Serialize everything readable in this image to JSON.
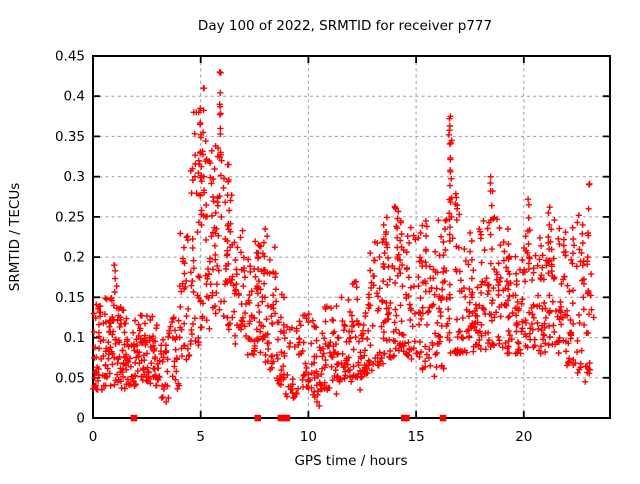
{
  "chart_data": {
    "type": "scatter",
    "title": "Day 100 of 2022, SRMTID for receiver p777",
    "xlabel": "GPS time / hours",
    "ylabel": "SRMTID / TECUs",
    "xlim": [
      0,
      24
    ],
    "ylim": [
      0,
      0.45
    ],
    "grid": true,
    "legend": "none",
    "marker": "plus",
    "marker_color": "#ff0000",
    "grid_color": "#9c9c9c",
    "axis_color": "#000000",
    "background_color": "#ffffff",
    "x_ticks": [
      {
        "v": 0,
        "label": "0"
      },
      {
        "v": 5,
        "label": "5"
      },
      {
        "v": 10,
        "label": "10"
      },
      {
        "v": 15,
        "label": "15"
      },
      {
        "v": 20,
        "label": "20"
      }
    ],
    "y_ticks": [
      {
        "v": 0,
        "label": "0"
      },
      {
        "v": 0.05,
        "label": "0.05"
      },
      {
        "v": 0.1,
        "label": "0.1"
      },
      {
        "v": 0.15,
        "label": "0.15"
      },
      {
        "v": 0.2,
        "label": "0.2"
      },
      {
        "v": 0.25,
        "label": "0.25"
      },
      {
        "v": 0.3,
        "label": "0.3"
      },
      {
        "v": 0.35,
        "label": "0.35"
      },
      {
        "v": 0.4,
        "label": "0.4"
      },
      {
        "v": 0.45,
        "label": "0.45"
      }
    ],
    "outlier_points": [
      [
        5.93,
        0.429
      ],
      [
        5.13,
        0.41
      ],
      [
        5.9,
        0.387
      ],
      [
        5.89,
        0.377
      ],
      [
        4.68,
        0.38
      ],
      [
        4.91,
        0.38
      ],
      [
        4.97,
        0.365
      ],
      [
        5.02,
        0.352
      ],
      [
        16.55,
        0.372
      ],
      [
        16.57,
        0.363
      ],
      [
        16.52,
        0.352
      ],
      [
        16.6,
        0.342
      ],
      [
        16.58,
        0.308
      ],
      [
        18.45,
        0.292
      ],
      [
        18.55,
        0.282
      ],
      [
        23.05,
        0.291
      ],
      [
        1.0,
        0.19
      ],
      [
        1.03,
        0.183
      ],
      [
        1.1,
        0.164
      ],
      [
        20.2,
        0.272
      ],
      [
        21.2,
        0.262
      ],
      [
        22.55,
        0.252
      ],
      [
        15.5,
        0.238
      ],
      [
        6.3,
        0.315
      ],
      [
        3.4,
        0.02
      ],
      [
        3.5,
        0.025
      ],
      [
        9.3,
        0.025
      ],
      [
        9.45,
        0.03
      ],
      [
        10.4,
        0.02
      ],
      [
        10.5,
        0.015
      ],
      [
        11.3,
        0.03
      ],
      [
        12.4,
        0.035
      ],
      [
        8.95,
        0.03
      ],
      [
        22.85,
        0.045
      ]
    ],
    "arc_streaks": [
      [
        5.02,
        0.24,
        0.385,
        9
      ],
      [
        5.13,
        0.3,
        0.41,
        5
      ],
      [
        5.92,
        0.25,
        0.43,
        8
      ],
      [
        5.88,
        0.33,
        0.39,
        3
      ],
      [
        6.28,
        0.22,
        0.315,
        6
      ],
      [
        16.55,
        0.22,
        0.375,
        10
      ],
      [
        16.62,
        0.25,
        0.345,
        5
      ],
      [
        16.3,
        0.17,
        0.235,
        5
      ],
      [
        14.1,
        0.2,
        0.26,
        6
      ],
      [
        14.3,
        0.18,
        0.245,
        5
      ],
      [
        18.5,
        0.21,
        0.3,
        6
      ],
      [
        20.2,
        0.2,
        0.265,
        5
      ],
      [
        21.15,
        0.18,
        0.255,
        6
      ],
      [
        13.5,
        0.17,
        0.24,
        5
      ],
      [
        7.7,
        0.14,
        0.215,
        6
      ],
      [
        7.95,
        0.15,
        0.235,
        6
      ],
      [
        8.5,
        0.13,
        0.175,
        4
      ],
      [
        4.75,
        0.3,
        0.38,
        4
      ],
      [
        23.0,
        0.2,
        0.29,
        4
      ],
      [
        1.0,
        0.14,
        0.19,
        4
      ],
      [
        15.45,
        0.17,
        0.245,
        5
      ],
      [
        17.6,
        0.15,
        0.22,
        4
      ],
      [
        22.75,
        0.15,
        0.24,
        5
      ],
      [
        12.9,
        0.14,
        0.205,
        4
      ],
      [
        19.3,
        0.16,
        0.235,
        5
      ]
    ],
    "density_bands": [
      [
        0.0,
        0.5,
        40,
        0.035,
        0.145,
        1.6
      ],
      [
        0.5,
        1.0,
        42,
        0.04,
        0.15,
        1.6
      ],
      [
        1.0,
        1.5,
        40,
        0.03,
        0.14,
        1.5
      ],
      [
        1.5,
        2.0,
        38,
        0.04,
        0.125,
        1.5
      ],
      [
        2.0,
        2.5,
        38,
        0.045,
        0.135,
        1.5
      ],
      [
        2.5,
        3.0,
        36,
        0.04,
        0.13,
        1.5
      ],
      [
        3.0,
        3.5,
        26,
        0.025,
        0.105,
        1.4
      ],
      [
        3.5,
        4.0,
        22,
        0.03,
        0.13,
        1.2
      ],
      [
        4.0,
        4.5,
        30,
        0.07,
        0.235,
        1.2
      ],
      [
        4.5,
        5.0,
        36,
        0.09,
        0.33,
        1.3
      ],
      [
        5.0,
        5.5,
        38,
        0.11,
        0.36,
        1.4
      ],
      [
        5.5,
        6.0,
        36,
        0.13,
        0.34,
        1.3
      ],
      [
        6.0,
        6.5,
        34,
        0.11,
        0.3,
        1.4
      ],
      [
        6.5,
        7.0,
        30,
        0.09,
        0.25,
        1.4
      ],
      [
        7.0,
        7.5,
        30,
        0.075,
        0.2,
        1.4
      ],
      [
        7.5,
        8.0,
        34,
        0.08,
        0.23,
        1.3
      ],
      [
        8.0,
        8.5,
        30,
        0.06,
        0.23,
        1.5
      ],
      [
        8.5,
        9.0,
        28,
        0.04,
        0.165,
        1.4
      ],
      [
        9.0,
        9.5,
        20,
        0.02,
        0.12,
        1.3
      ],
      [
        9.5,
        10.0,
        26,
        0.035,
        0.13,
        1.4
      ],
      [
        10.0,
        10.5,
        28,
        0.025,
        0.13,
        1.4
      ],
      [
        10.5,
        11.0,
        30,
        0.035,
        0.14,
        1.5
      ],
      [
        11.0,
        11.5,
        30,
        0.04,
        0.145,
        1.5
      ],
      [
        11.5,
        12.0,
        30,
        0.045,
        0.15,
        1.5
      ],
      [
        12.0,
        12.5,
        32,
        0.05,
        0.17,
        1.5
      ],
      [
        12.5,
        13.0,
        32,
        0.055,
        0.185,
        1.5
      ],
      [
        13.0,
        13.5,
        32,
        0.065,
        0.22,
        1.5
      ],
      [
        13.5,
        14.0,
        34,
        0.075,
        0.25,
        1.5
      ],
      [
        14.0,
        14.5,
        34,
        0.08,
        0.265,
        1.4
      ],
      [
        14.5,
        15.0,
        32,
        0.07,
        0.24,
        1.5
      ],
      [
        15.0,
        15.5,
        32,
        0.06,
        0.24,
        1.5
      ],
      [
        15.5,
        16.0,
        30,
        0.05,
        0.22,
        1.5
      ],
      [
        16.0,
        16.5,
        32,
        0.06,
        0.26,
        1.5
      ],
      [
        16.5,
        17.0,
        32,
        0.08,
        0.28,
        1.5
      ],
      [
        17.0,
        17.5,
        30,
        0.08,
        0.22,
        1.5
      ],
      [
        17.5,
        18.0,
        32,
        0.08,
        0.245,
        1.5
      ],
      [
        18.0,
        18.5,
        32,
        0.085,
        0.26,
        1.5
      ],
      [
        18.5,
        19.0,
        32,
        0.09,
        0.25,
        1.5
      ],
      [
        19.0,
        19.5,
        32,
        0.08,
        0.24,
        1.5
      ],
      [
        19.5,
        20.0,
        32,
        0.08,
        0.205,
        1.5
      ],
      [
        20.0,
        20.5,
        32,
        0.085,
        0.26,
        1.5
      ],
      [
        20.5,
        21.0,
        32,
        0.08,
        0.225,
        1.5
      ],
      [
        21.0,
        21.5,
        32,
        0.09,
        0.26,
        1.4
      ],
      [
        21.5,
        22.0,
        32,
        0.08,
        0.245,
        1.5
      ],
      [
        22.0,
        22.5,
        32,
        0.065,
        0.255,
        1.5
      ],
      [
        22.5,
        23.25,
        36,
        0.055,
        0.245,
        1.5
      ]
    ],
    "zero_axis_square_markers_x": [
      1.9,
      7.65,
      8.72,
      8.85,
      9.0,
      14.45,
      14.55,
      16.25
    ],
    "seed": 7
  }
}
